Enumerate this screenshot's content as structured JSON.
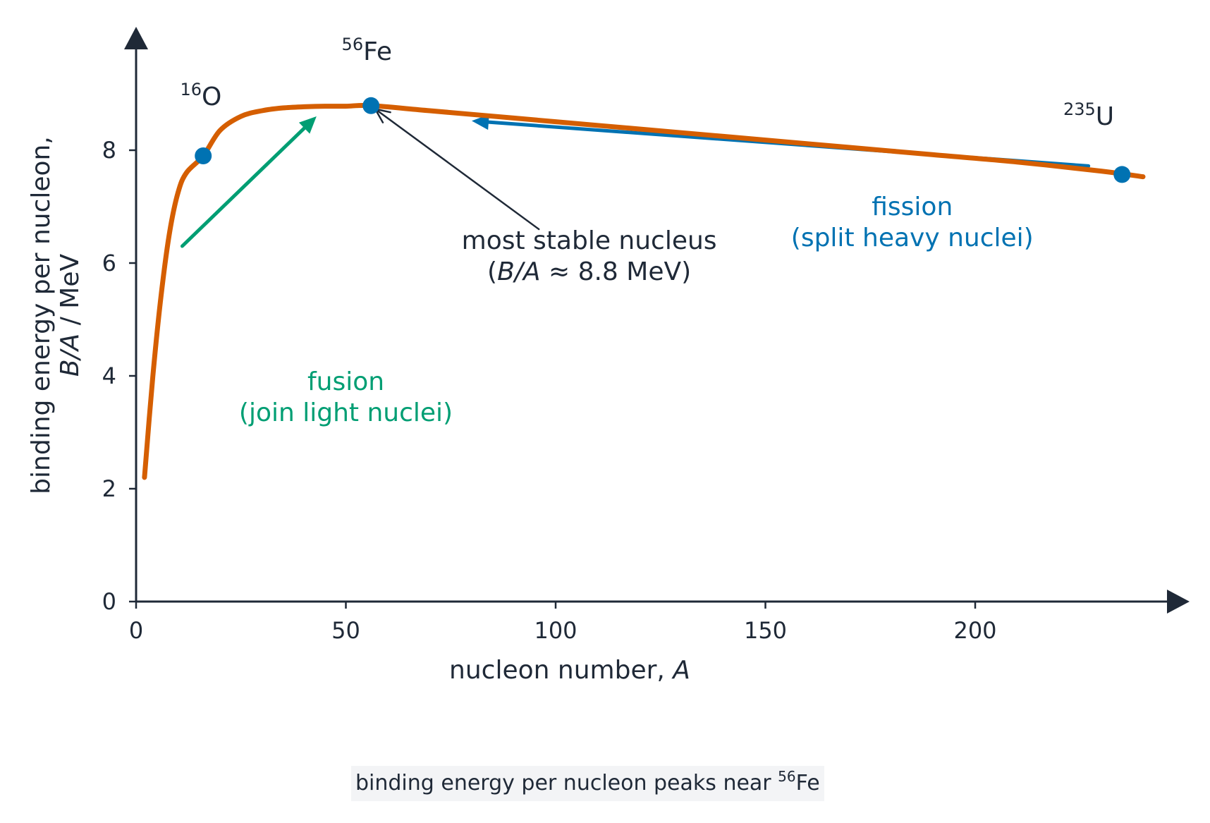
{
  "chart_data": {
    "type": "line",
    "xlabel": {
      "text": "nucleon number, ",
      "italic": "A"
    },
    "ylabel": {
      "line1": "binding energy per nucleon,",
      "line2_italic": "B/A",
      "line2_rest": " / MeV"
    },
    "xlim": [
      0,
      245
    ],
    "ylim": [
      0,
      9.8
    ],
    "xticks": [
      0,
      50,
      100,
      150,
      200
    ],
    "yticks": [
      0,
      2,
      4,
      6,
      8
    ],
    "grid": false,
    "series": [
      {
        "color": "#d55e00",
        "x": [
          2,
          4,
          6,
          8,
          10,
          12,
          16,
          20,
          25,
          30,
          35,
          40,
          45,
          50,
          56,
          70,
          90,
          110,
          130,
          150,
          170,
          190,
          210,
          230,
          240
        ],
        "y": [
          2.2,
          4.0,
          5.45,
          6.55,
          7.25,
          7.6,
          7.9,
          8.35,
          8.6,
          8.7,
          8.75,
          8.77,
          8.78,
          8.78,
          8.79,
          8.7,
          8.57,
          8.44,
          8.31,
          8.18,
          8.05,
          7.92,
          7.79,
          7.63,
          7.53
        ]
      }
    ],
    "points": [
      {
        "x": 16,
        "y": 7.9,
        "color": "#0072b2"
      },
      {
        "x": 56,
        "y": 8.79,
        "color": "#0072b2"
      },
      {
        "x": 235,
        "y": 7.57,
        "color": "#0072b2"
      }
    ],
    "nuclide_labels": [
      {
        "mass": "16",
        "symbol": "O",
        "x": 10.5,
        "y": 8.8
      },
      {
        "mass": "56",
        "symbol": "Fe",
        "x": 49,
        "y": 9.6
      },
      {
        "mass": "235",
        "symbol": "U",
        "x": 221,
        "y": 8.45
      }
    ],
    "annotations": {
      "fusion": {
        "line1": "fusion",
        "line2": "(join light nuclei)",
        "color": "#009e73",
        "x": 50,
        "y1": 3.75,
        "y2": 3.2
      },
      "fission": {
        "line1": "fission",
        "line2": "(split heavy nuclei)",
        "color": "#0072b2",
        "x": 185,
        "y1": 6.85,
        "y2": 6.3
      },
      "stable": {
        "line1": "most stable nucleus",
        "line2_open": "(",
        "line2_italic": "B/A",
        "line2_rest": " ≈ 8.8 MeV)",
        "color": "#1f2937",
        "x": 108,
        "y1": 6.25,
        "y2": 5.7
      }
    },
    "arrows": [
      {
        "name": "fusion-arrow",
        "from": [
          11,
          6.3
        ],
        "to": [
          43,
          8.6
        ],
        "color": "#009e73",
        "width": 5
      },
      {
        "name": "fission-arrow",
        "from": [
          227,
          7.72
        ],
        "to": [
          80,
          8.52
        ],
        "color": "#0072b2",
        "width": 5
      },
      {
        "name": "stable-pointer",
        "from": [
          96,
          6.6
        ],
        "to": [
          57,
          8.73
        ],
        "color": "#1f2937",
        "width": 2.5
      }
    ]
  },
  "caption": {
    "text": "binding energy per nucleon peaks near ",
    "sup": "56",
    "tail": "Fe"
  }
}
